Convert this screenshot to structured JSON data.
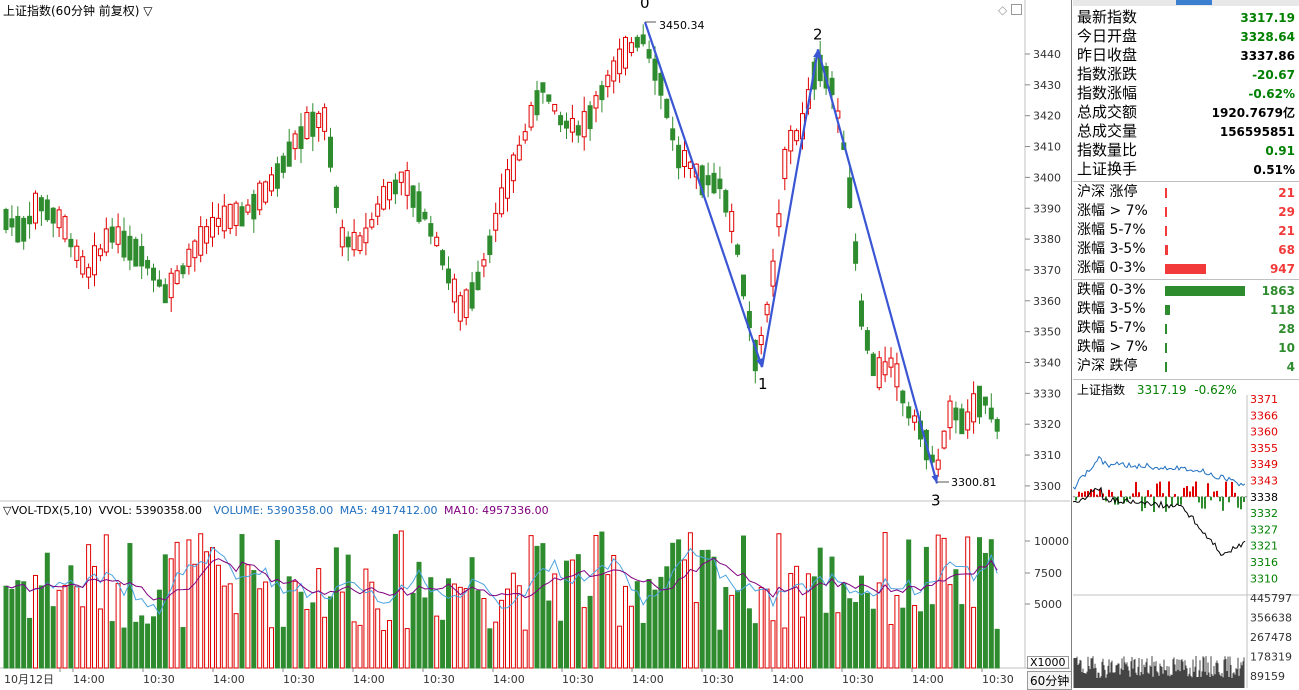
{
  "main": {
    "title": "上证指数(60分钟 前复权) ▽",
    "price_ticks": [
      "3440",
      "3430",
      "3420",
      "3410",
      "3400",
      "3390",
      "3380",
      "3370",
      "3360",
      "3350",
      "3340",
      "3330",
      "3320",
      "3310",
      "3300"
    ],
    "high_label": "3450.34",
    "low_label": "3300.81",
    "wave_points": [
      {
        "label": "0",
        "price": 3450.34
      },
      {
        "label": "1",
        "price": 3338.5
      },
      {
        "label": "2",
        "price": 3441.5
      },
      {
        "label": "3",
        "price": 3300.81
      }
    ],
    "wave_color": "#3a56d4"
  },
  "vol": {
    "header_prefix": "▽VOL-TDX(5,10)",
    "vvol": "VVOL: 5390358.00",
    "volume": "VOLUME: 5390358.00",
    "ma5": "MA5: 4917412.00",
    "ma10": "MA10: 4957336.00",
    "ticks": [
      "10000",
      "7500",
      "5000"
    ],
    "unit": "X1000"
  },
  "xaxis": {
    "labels": [
      "10月12日",
      "14:00",
      "10:30",
      "14:00",
      "10:30",
      "14:00",
      "10:30",
      "14:00",
      "10:30",
      "14:00",
      "10:30",
      "14:00",
      "10:30",
      "14:00",
      "10:30"
    ],
    "period_button": "60分钟"
  },
  "quote": {
    "rows": [
      {
        "label": "最新指数",
        "value": "3317.19",
        "color": "green"
      },
      {
        "label": "今日开盘",
        "value": "3328.64",
        "color": "green"
      },
      {
        "label": "昨日收盘",
        "value": "3337.86",
        "color": "black"
      },
      {
        "label": "指数涨跌",
        "value": "-20.67",
        "color": "green"
      },
      {
        "label": "指数涨幅",
        "value": "-0.62%",
        "color": "green"
      },
      {
        "label": "总成交额",
        "value": "1920.7679亿",
        "color": "black"
      },
      {
        "label": "总成交量",
        "value": "156595851",
        "color": "black"
      },
      {
        "label": "指数量比",
        "value": "0.91",
        "color": "green"
      },
      {
        "label": "上证换手",
        "value": "0.51%",
        "color": "black"
      }
    ]
  },
  "breadth": {
    "up": [
      {
        "label": "沪深 涨停",
        "value": "21",
        "count": 21
      },
      {
        "label": "涨幅 > 7%",
        "value": "29",
        "count": 29
      },
      {
        "label": "涨幅 5-7%",
        "value": "21",
        "count": 21
      },
      {
        "label": "涨幅 3-5%",
        "value": "68",
        "count": 68
      },
      {
        "label": "涨幅 0-3%",
        "value": "947",
        "count": 947
      }
    ],
    "down": [
      {
        "label": "跌幅 0-3%",
        "value": "1863",
        "count": 1863
      },
      {
        "label": "跌幅 3-5%",
        "value": "118",
        "count": 118
      },
      {
        "label": "跌幅 5-7%",
        "value": "28",
        "count": 28
      },
      {
        "label": "跌幅 > 7%",
        "value": "10",
        "count": 10
      },
      {
        "label": "沪深 跌停",
        "value": "4",
        "count": 4
      }
    ],
    "max_count": 1863
  },
  "mini": {
    "name": "上证指数",
    "price": "3317.19",
    "change": "-0.62%",
    "price_ticks": [
      {
        "v": "3371",
        "c": "red"
      },
      {
        "v": "3366",
        "c": "red"
      },
      {
        "v": "3360",
        "c": "red"
      },
      {
        "v": "3355",
        "c": "red"
      },
      {
        "v": "3349",
        "c": "red"
      },
      {
        "v": "3343",
        "c": "red"
      },
      {
        "v": "3338",
        "c": "black"
      },
      {
        "v": "3332",
        "c": "green"
      },
      {
        "v": "3327",
        "c": "green"
      },
      {
        "v": "3321",
        "c": "green"
      },
      {
        "v": "3316",
        "c": "green"
      },
      {
        "v": "3310",
        "c": "green"
      }
    ],
    "vol_ticks": [
      "445797",
      "356638",
      "267478",
      "178319",
      "89159"
    ]
  },
  "colors": {
    "up": "#e00000",
    "down": "#2e8b2e",
    "ma5": "#4aa3df",
    "ma10": "#800080",
    "accent": "#3a56d4"
  }
}
